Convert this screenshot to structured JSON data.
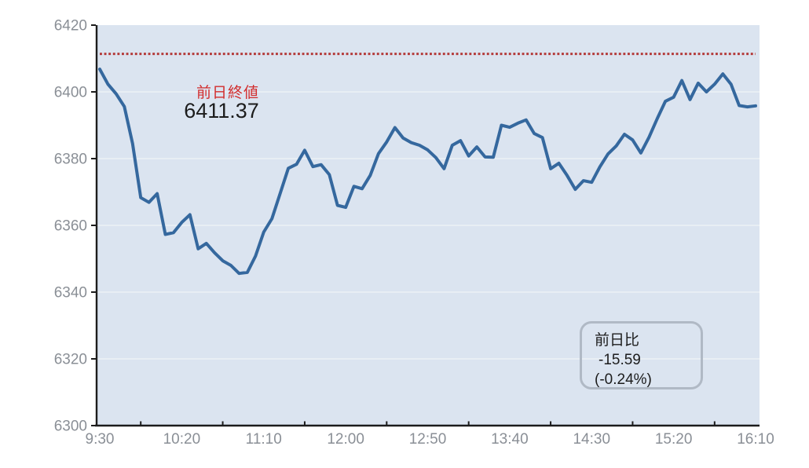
{
  "chart": {
    "colors": {
      "plot_background": "#dbe4f0",
      "grid_line": "#edf1f6",
      "axis_line": "#1c1c1c",
      "tick_label": "#8a8f96",
      "price_line": "#35689e",
      "reference_line": "#b43a3a",
      "prev_close_label_text": "#d22d2d",
      "annotation_text": "#1c1c1c",
      "change_box_border": "#b0b9c5"
    },
    "annotations": {
      "prev_close_label": "前日終値",
      "prev_close_value": "6411.37",
      "change_box": {
        "title": "前日比",
        "change": "-15.59",
        "change_pct": "(-0.24%)"
      }
    }
  },
  "chart_data": {
    "type": "line",
    "title": "",
    "xlabel": "",
    "ylabel": "",
    "x_tick_labels": [
      "9:30",
      "10:20",
      "11:10",
      "12:00",
      "12:50",
      "13:40",
      "14:30",
      "15:20",
      "16:10"
    ],
    "y_tick_labels": [
      "6300",
      "6320",
      "6340",
      "6360",
      "6380",
      "6400",
      "6420"
    ],
    "y_ticks": [
      6300,
      6320,
      6340,
      6360,
      6380,
      6400,
      6420
    ],
    "ylim": [
      6300,
      6420
    ],
    "x_start_time": "9:30",
    "x_end_time": "16:10",
    "x_interval_minutes": 5,
    "grid": "horizontal",
    "legend": "none",
    "reference_line": {
      "label": "前日終値",
      "value": 6411.37,
      "style": "dotted"
    },
    "series": [
      {
        "name": "price",
        "values": [
          6406.8,
          6402.3,
          6399.4,
          6395.6,
          6384.5,
          6368.3,
          6366.9,
          6369.5,
          6357.3,
          6357.8,
          6360.9,
          6363.2,
          6353.0,
          6354.6,
          6351.8,
          6349.4,
          6348.0,
          6345.6,
          6345.9,
          6350.8,
          6358.0,
          6362.0,
          6369.5,
          6377.1,
          6378.3,
          6382.5,
          6377.6,
          6378.2,
          6375.2,
          6366.0,
          6365.4,
          6371.7,
          6371.0,
          6375.0,
          6381.5,
          6385.0,
          6389.3,
          6386.2,
          6384.8,
          6384.0,
          6382.6,
          6380.3,
          6377.0,
          6384.0,
          6385.4,
          6380.8,
          6383.5,
          6380.5,
          6380.4,
          6390.0,
          6389.4,
          6390.6,
          6391.6,
          6387.5,
          6386.3,
          6377.0,
          6378.6,
          6375.0,
          6370.8,
          6373.4,
          6372.9,
          6377.5,
          6381.4,
          6383.8,
          6387.3,
          6385.6,
          6381.7,
          6386.4,
          6392.0,
          6397.2,
          6398.4,
          6403.4,
          6397.7,
          6402.6,
          6400.0,
          6402.3,
          6405.4,
          6402.3,
          6395.9,
          6395.5,
          6395.8
        ]
      }
    ]
  }
}
